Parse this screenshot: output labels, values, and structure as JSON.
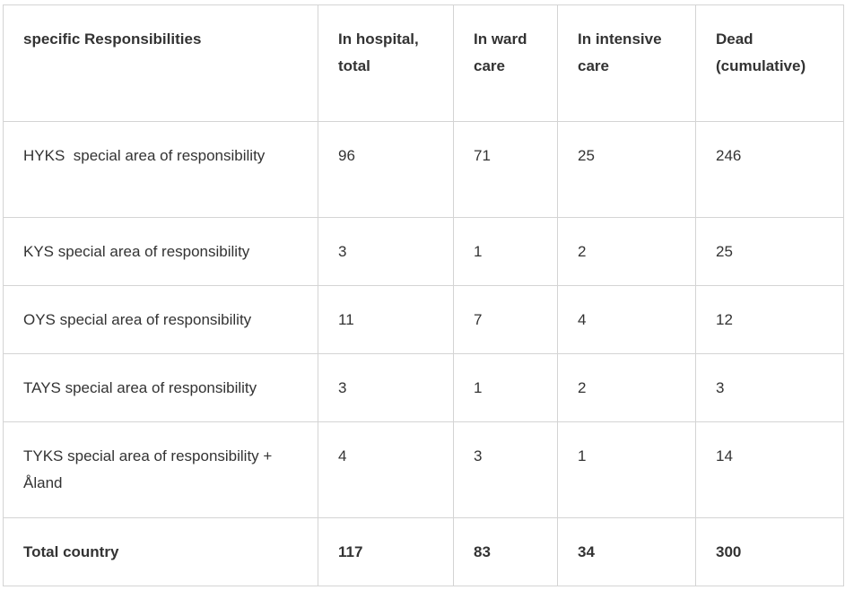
{
  "table": {
    "header": [
      "specific Responsibilities",
      "In hospital, total",
      "In ward care",
      "In intensive care",
      "Dead (cumulative)"
    ],
    "rows": [
      [
        "HYKS  special area of responsibility",
        96,
        71,
        25,
        246
      ],
      [
        "KYS special area of responsibility",
        3,
        1,
        2,
        25
      ],
      [
        "OYS special area of responsibility",
        11,
        7,
        4,
        12
      ],
      [
        "TAYS special area of responsibility",
        3,
        1,
        2,
        3
      ],
      [
        "TYKS special area of responsibility + Åland",
        4,
        3,
        1,
        14
      ],
      [
        "Total country",
        117,
        83,
        34,
        300
      ]
    ]
  }
}
